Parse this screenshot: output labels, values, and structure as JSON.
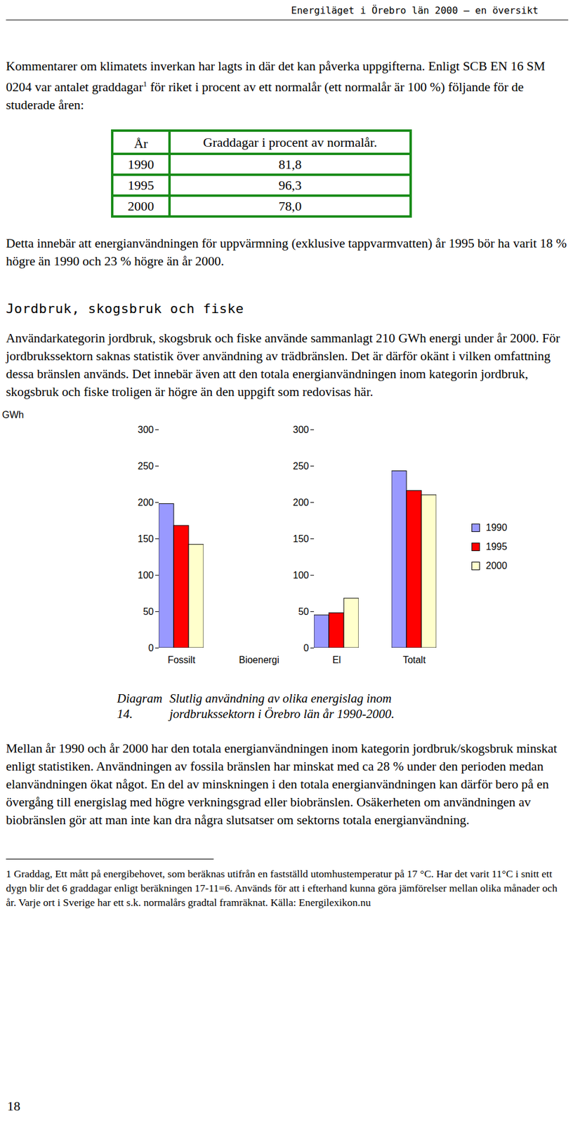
{
  "header": "Energiläget i Örebro län 2000 – en översikt",
  "intro": {
    "before": "Kommentarer om klimatets inverkan har lagts in där det kan påverka uppgifterna. Enligt SCB EN 16 SM 0204 var antalet graddagar",
    "sup": "1",
    "after": " för riket i procent av ett normalår (ett normalår är 100 %) följande för de studerade åren:"
  },
  "table": {
    "header": [
      "År",
      "Graddagar i procent av normalår."
    ],
    "rows": [
      [
        "1990",
        "81,8"
      ],
      [
        "1995",
        "96,3"
      ],
      [
        "2000",
        "78,0"
      ]
    ]
  },
  "paragraph1": "Detta innebär att energianvändningen för uppvärmning (exklusive tappvarmvatten) år 1995 bör ha varit 18 % högre än 1990 och 23 % högre än år 2000.",
  "section_title": "Jordbruk, skogsbruk och fiske",
  "paragraph2": "Användarkategorin jordbruk, skogsbruk och fiske använde sammanlagt 210 GWh energi under år 2000. För jordbrukssektorn saknas statistik över användning av trädbränslen. Det är därför okänt i vilken omfattning dessa bränslen används. Det innebär även att den totala energianvändningen inom kategorin jordbruk, skogsbruk och fiske troligen är högre än den uppgift som redovisas här.",
  "chart_data": {
    "type": "bar",
    "y_label": "GWh",
    "categories": [
      "Fossilt",
      "Bioenergi",
      "El",
      "Totalt"
    ],
    "series": [
      {
        "name": "1990",
        "color": "#9999ff",
        "values": [
          198,
          null,
          45,
          243
        ]
      },
      {
        "name": "1995",
        "color": "#ff0000",
        "values": [
          168,
          null,
          48,
          216
        ]
      },
      {
        "name": "2000",
        "color": "#ffffcc",
        "values": [
          142,
          null,
          68,
          210
        ]
      }
    ],
    "ylim": [
      0,
      300
    ],
    "yticks": [
      0,
      50,
      100,
      150,
      200,
      250,
      300
    ],
    "legend": "right"
  },
  "caption": {
    "number": "Diagram 14.",
    "text": "Slutlig användning av olika energislag inom jordbrukssektorn i Örebro län år 1990-2000."
  },
  "paragraph3": "Mellan år 1990 och år 2000 har den totala energianvändningen inom kategorin jordbruk/skogsbruk minskat enligt statistiken. Användningen av fossila bränslen har minskat med ca 28 % under den perioden medan elanvändningen ökat något. En del av minskningen i den totala energianvändningen kan därför bero på en övergång till energislag med högre verkningsgrad eller biobränslen. Osäkerheten om användningen av biobränslen gör att man inte kan dra några slutsatser om sektorns totala energianvändning.",
  "footnote": "1 Graddag, Ett mått på energibehovet, som beräknas utifrån en fastställd utomhustemperatur på 17 °C. Har det varit 11°C i snitt ett dygn blir det 6 graddagar enligt beräkningen 17-11=6. Används för att i efterhand kunna göra jämförelser mellan olika månader och år. Varje ort i Sverige har ett s.k. normalårs gradtal framräknat. Källa: Energilexikon.nu",
  "page_number": "18"
}
